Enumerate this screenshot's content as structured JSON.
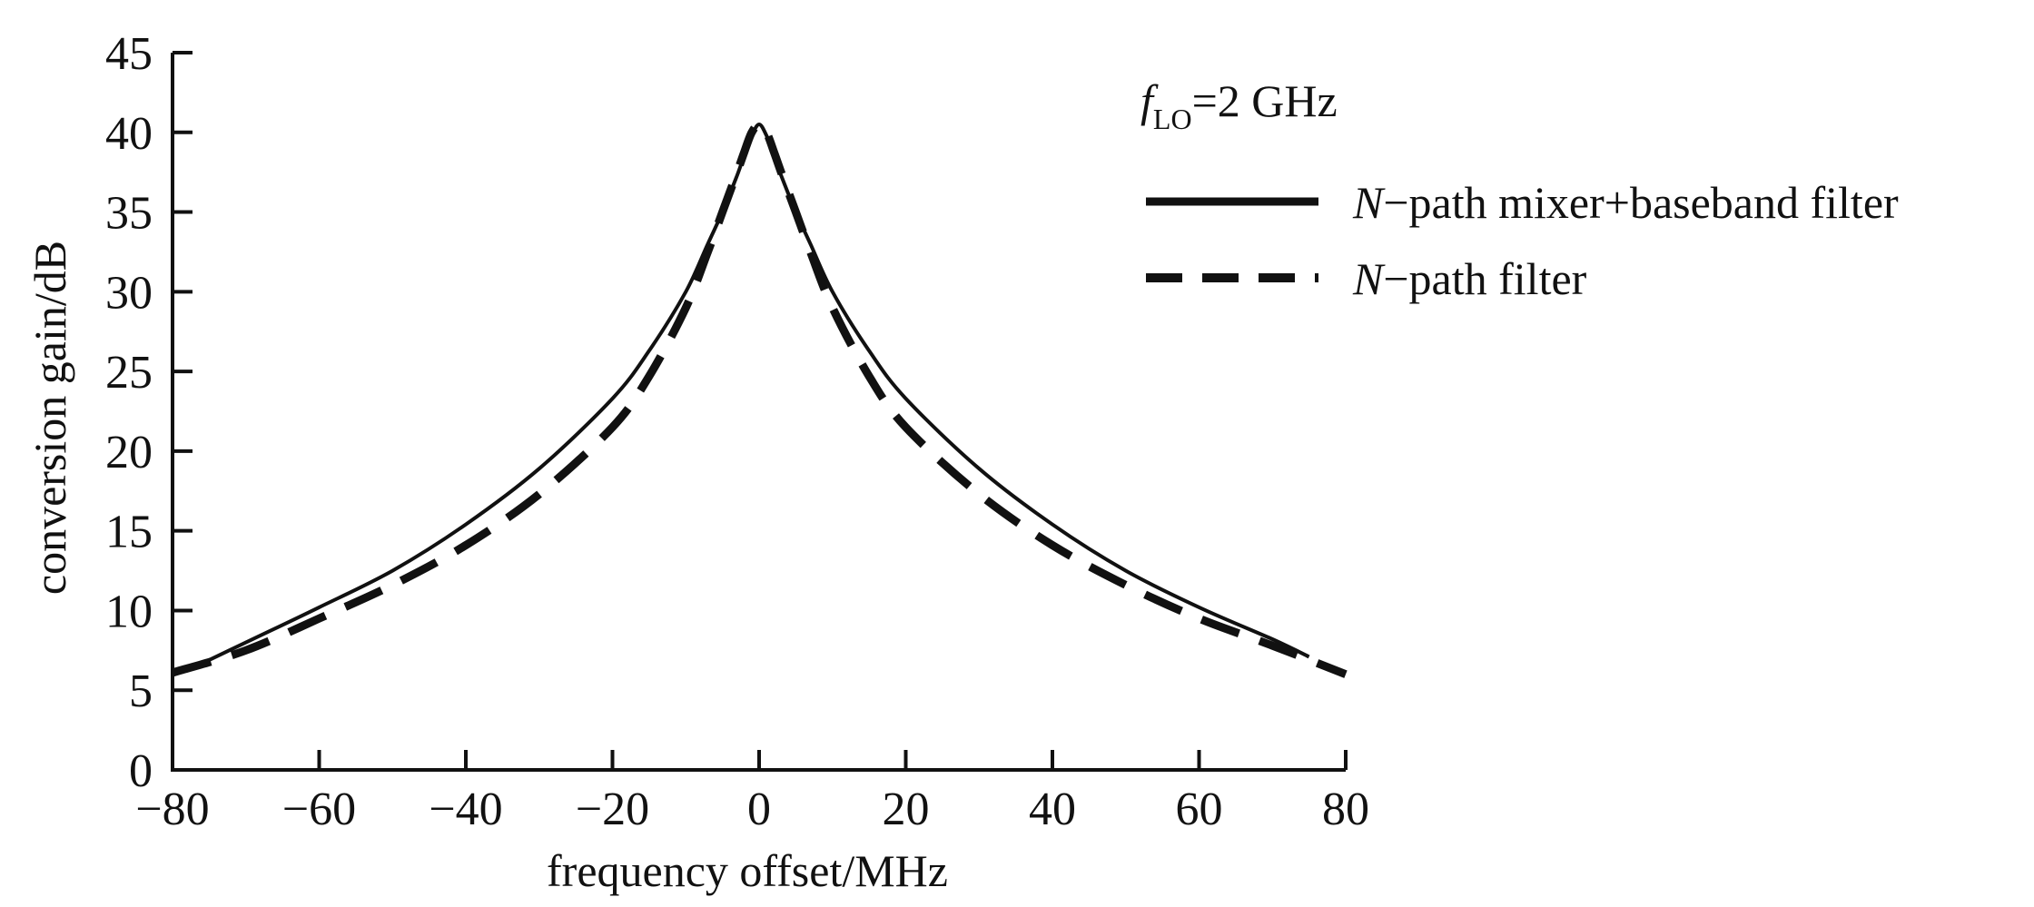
{
  "chart_data": {
    "type": "line",
    "title": "",
    "xlabel": "frequency offset/MHz",
    "ylabel": "conversion gain/dB",
    "xlim": [
      -80,
      80
    ],
    "ylim": [
      0,
      45
    ],
    "x_ticks": [
      "−80",
      "−60",
      "−40",
      "−20",
      "0",
      "20",
      "40",
      "60",
      "80"
    ],
    "y_ticks": [
      "0",
      "5",
      "10",
      "15",
      "20",
      "25",
      "30",
      "35",
      "40",
      "45"
    ],
    "grid": false,
    "legend_position": "top-right",
    "annotation": {
      "symbol": "f",
      "subscript": "LO",
      "text": "=2 GHz"
    },
    "series": [
      {
        "name_italic": "N",
        "name": "−path mixer+baseband filter",
        "style": "solid",
        "color": "#111111",
        "x": [
          -75,
          -70,
          -60,
          -50,
          -40,
          -30,
          -20,
          -15,
          -10,
          -7,
          -5,
          -3,
          -2,
          -1,
          0,
          1,
          2,
          3,
          5,
          7,
          10,
          15,
          20,
          30,
          40,
          50,
          60,
          70,
          75
        ],
        "y": [
          6.9,
          8.0,
          10.2,
          12.5,
          15.4,
          18.9,
          23.3,
          26.3,
          30.0,
          33.0,
          35.0,
          37.3,
          38.6,
          39.8,
          40.5,
          39.8,
          38.6,
          37.3,
          35.0,
          33.0,
          30.0,
          26.3,
          23.3,
          18.9,
          15.4,
          12.5,
          10.2,
          8.2,
          7.1
        ]
      },
      {
        "name_italic": "N",
        "name": "−path filter",
        "style": "dashed",
        "color": "#111111",
        "x": [
          -80,
          -70,
          -60,
          -50,
          -40,
          -30,
          -20,
          -15,
          -10,
          -7,
          -5,
          -3,
          -2,
          -1,
          0,
          1,
          2,
          3,
          5,
          7,
          10,
          15,
          20,
          30,
          40,
          50,
          60,
          70,
          80
        ],
        "y": [
          6.1,
          7.5,
          9.5,
          11.6,
          14.1,
          17.3,
          21.5,
          24.7,
          29.0,
          32.5,
          35.0,
          37.5,
          38.8,
          40.0,
          40.5,
          40.0,
          38.8,
          37.5,
          35.0,
          32.5,
          29.0,
          24.7,
          21.5,
          17.3,
          14.1,
          11.6,
          9.5,
          7.8,
          6.0
        ]
      }
    ]
  }
}
